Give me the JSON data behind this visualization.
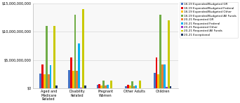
{
  "categories": [
    "Aged and\nMedicare\nRelated",
    "Disability\nRelated",
    "Pregnant\nWomen",
    "Other Adults",
    "Children"
  ],
  "series": [
    {
      "label": "18-19 Expended/Budgeted\nGR",
      "color": "#4472C4",
      "values": [
        2600000000,
        3200000000,
        600000000,
        400000000,
        2800000000
      ]
    },
    {
      "label": "18-19 Expended/Budgeted\nFederal",
      "color": "#E8000D",
      "values": [
        4200000000,
        5500000000,
        800000000,
        600000000,
        5500000000
      ]
    },
    {
      "label": "18-19 Expended/Budgeted\nOther",
      "color": "#FFC000",
      "values": [
        2500000000,
        3100000000,
        550000000,
        480000000,
        2500000000
      ]
    },
    {
      "label": "18-19 Expended/Budgeted\nAll Funds",
      "color": "#70AD47",
      "values": [
        11000000000,
        13000000000,
        1400000000,
        1300000000,
        13000000000
      ]
    },
    {
      "label": "20-21 Requested\nGR",
      "color": "#ED7D31",
      "values": [
        2500000000,
        3100000000,
        550000000,
        420000000,
        4200000000
      ]
    },
    {
      "label": "20-21 Requested\nFederal",
      "color": "#00B0F0",
      "values": [
        4100000000,
        8000000000,
        680000000,
        480000000,
        4200000000
      ]
    },
    {
      "label": "20-21 Requested\nOther",
      "color": "#9933CC",
      "values": [
        80000000,
        180000000,
        80000000,
        60000000,
        350000000
      ]
    },
    {
      "label": "20-21 Requested\nAll Funds",
      "color": "#C9C900",
      "values": [
        11000000000,
        14000000000,
        1400000000,
        1350000000,
        12000000000
      ]
    },
    {
      "label": "20-21 Exceptional",
      "color": "#1F3864",
      "values": [
        480000000,
        580000000,
        45000000,
        45000000,
        380000000
      ]
    }
  ],
  "ylim": [
    0,
    15000000000
  ],
  "yticks": [
    0,
    5000000000,
    10000000000,
    15000000000
  ],
  "ytick_labels": [
    "$0",
    "$5,000,000,000",
    "$10,000,000,000",
    "$15,000,000,000"
  ],
  "background_color": "#FFFFFF",
  "plot_bg_color": "#F8F8F8",
  "grid_color": "#D0D0D0",
  "bar_width": 0.07,
  "figsize": [
    3.42,
    1.47
  ],
  "dpi": 100
}
